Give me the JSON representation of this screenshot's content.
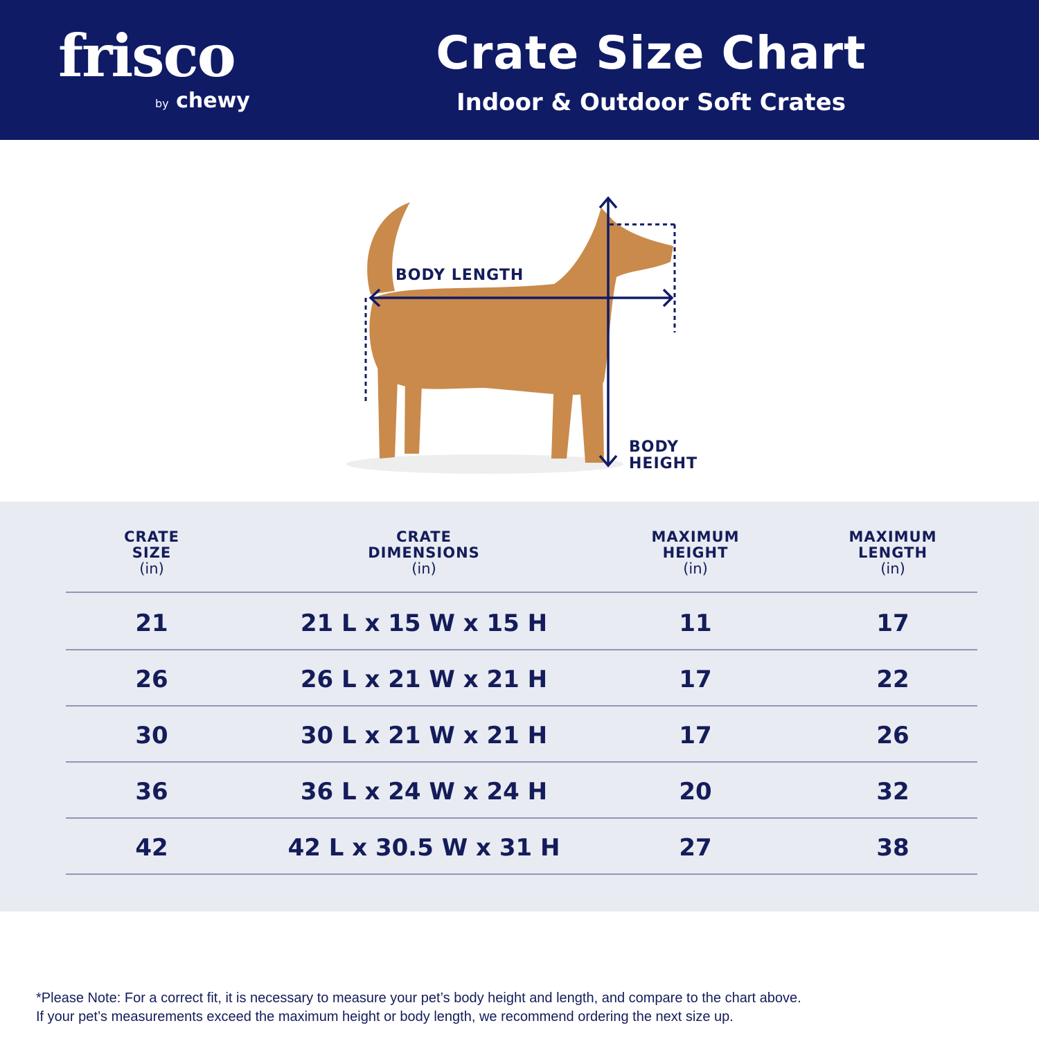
{
  "brand": {
    "logo": "frisco",
    "byline_small": "by",
    "byline": "chewy"
  },
  "header": {
    "title": "Crate Size Chart",
    "subtitle": "Indoor & Outdoor Soft Crates"
  },
  "figure": {
    "length_label": "BODY LENGTH",
    "height_label_1": "BODY",
    "height_label_2": "HEIGHT"
  },
  "colors": {
    "navy": "#101b66",
    "table_bg": "#e8ebf2",
    "dog": "#c98a4b"
  },
  "table": {
    "headers": [
      {
        "l1": "CRATE",
        "l2": "SIZE",
        "unit": "(in)"
      },
      {
        "l1": "CRATE",
        "l2": "DIMENSIONS",
        "unit": "(in)"
      },
      {
        "l1": "MAXIMUM",
        "l2": "HEIGHT",
        "unit": "(in)"
      },
      {
        "l1": "MAXIMUM",
        "l2": "LENGTH",
        "unit": "(in)"
      }
    ],
    "rows": [
      [
        "21",
        "21 L x 15 W x 15 H",
        "11",
        "17"
      ],
      [
        "26",
        "26 L x 21 W x 21 H",
        "17",
        "22"
      ],
      [
        "30",
        "30 L x 21 W x 21 H",
        "17",
        "26"
      ],
      [
        "36",
        "36 L x 24 W x 24 H",
        "20",
        "32"
      ],
      [
        "42",
        "42 L x 30.5 W x 31 H",
        "27",
        "38"
      ]
    ]
  },
  "note": {
    "line1": "*Please Note: For a correct fit, it is necessary to measure your pet’s body height and length, and compare to the chart above.",
    "line2": "If your pet’s measurements exceed the maximum height or body length, we recommend ordering the next size up."
  }
}
